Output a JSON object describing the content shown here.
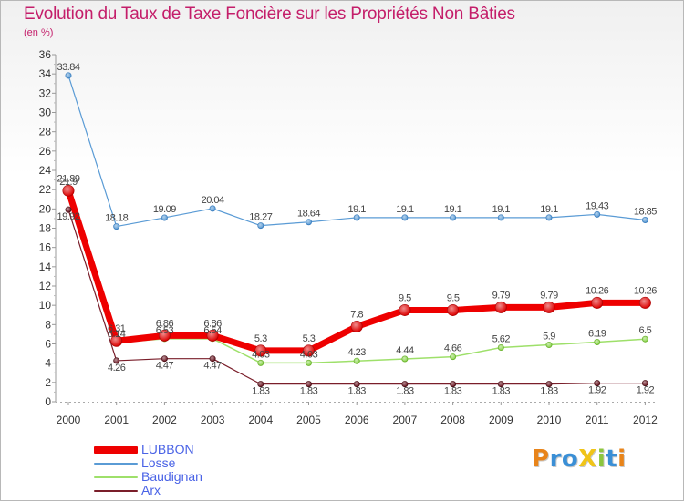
{
  "title": "Evolution du Taux de Taxe Foncière sur les Propriétés Non Bâties",
  "unit_label": "(en %)",
  "brand": {
    "text": "ProXiti",
    "letters": [
      {
        "ch": "P",
        "color": "#e8841a"
      },
      {
        "ch": "r",
        "color": "#3a8fd6"
      },
      {
        "ch": "o",
        "color": "#3a8fd6"
      },
      {
        "ch": "X",
        "color": "#f0c419"
      },
      {
        "ch": "i",
        "color": "#8cc63e"
      },
      {
        "ch": "t",
        "color": "#3a8fd6"
      },
      {
        "ch": "i",
        "color": "#e8841a"
      }
    ]
  },
  "chart_data": {
    "type": "line",
    "title": "Evolution du Taux de Taxe Foncière sur les Propriétés Non Bâties",
    "ylabel": "(en %)",
    "xlabel": "",
    "categories": [
      "2000",
      "2001",
      "2002",
      "2003",
      "2004",
      "2005",
      "2006",
      "2007",
      "2008",
      "2009",
      "2010",
      "2011",
      "2012"
    ],
    "ylim": [
      0,
      36
    ],
    "yticks": [
      0,
      2,
      4,
      6,
      8,
      10,
      12,
      14,
      16,
      18,
      20,
      22,
      24,
      26,
      28,
      30,
      32,
      34,
      36
    ],
    "grid": false,
    "legend_position": "bottom-left",
    "series": [
      {
        "name": "LUBBON",
        "color": "#ee0000",
        "values": [
          21.89,
          6.31,
          6.86,
          6.86,
          5.3,
          5.3,
          7.8,
          9.5,
          9.5,
          9.79,
          9.79,
          10.26,
          10.26
        ],
        "labels": [
          "21.89",
          "6.31",
          "6.86",
          "6.86",
          "5.3",
          "5.3",
          "7.8",
          "9.5",
          "9.5",
          "9.79",
          "9.79",
          "10.26",
          "10.26"
        ]
      },
      {
        "name": "Losse",
        "color": "#5a9bd5",
        "values": [
          33.84,
          18.18,
          19.09,
          20.04,
          18.27,
          18.64,
          19.1,
          19.1,
          19.1,
          19.1,
          19.1,
          19.43,
          18.85
        ],
        "labels": [
          "33.84",
          "18.18",
          "19.09",
          "20.04",
          "18.27",
          "18.64",
          "19.1",
          "19.1",
          "19.1",
          "19.1",
          "19.1",
          "19.43",
          "18.85"
        ]
      },
      {
        "name": "Baudignan",
        "color": "#9ee06a",
        "values": [
          21.9,
          6.14,
          6.53,
          6.54,
          4.03,
          4.03,
          4.23,
          4.44,
          4.66,
          5.62,
          5.9,
          6.19,
          6.5
        ],
        "labels": [
          "21.9",
          "6.14",
          "6.53",
          "6.54",
          "4.03",
          "4.03",
          "4.23",
          "4.44",
          "4.66",
          "5.62",
          "5.9",
          "6.19",
          "6.5"
        ]
      },
      {
        "name": "Arx",
        "color": "#7a1e2a",
        "values": [
          19.92,
          4.26,
          4.47,
          4.47,
          1.83,
          1.83,
          1.83,
          1.83,
          1.83,
          1.83,
          1.83,
          1.92,
          1.92
        ],
        "labels": [
          "19.92",
          "4.26",
          "4.47",
          "4.47",
          "1.83",
          "1.83",
          "1.83",
          "1.83",
          "1.83",
          "1.83",
          "1.83",
          "1.92",
          "1.92"
        ]
      }
    ]
  }
}
